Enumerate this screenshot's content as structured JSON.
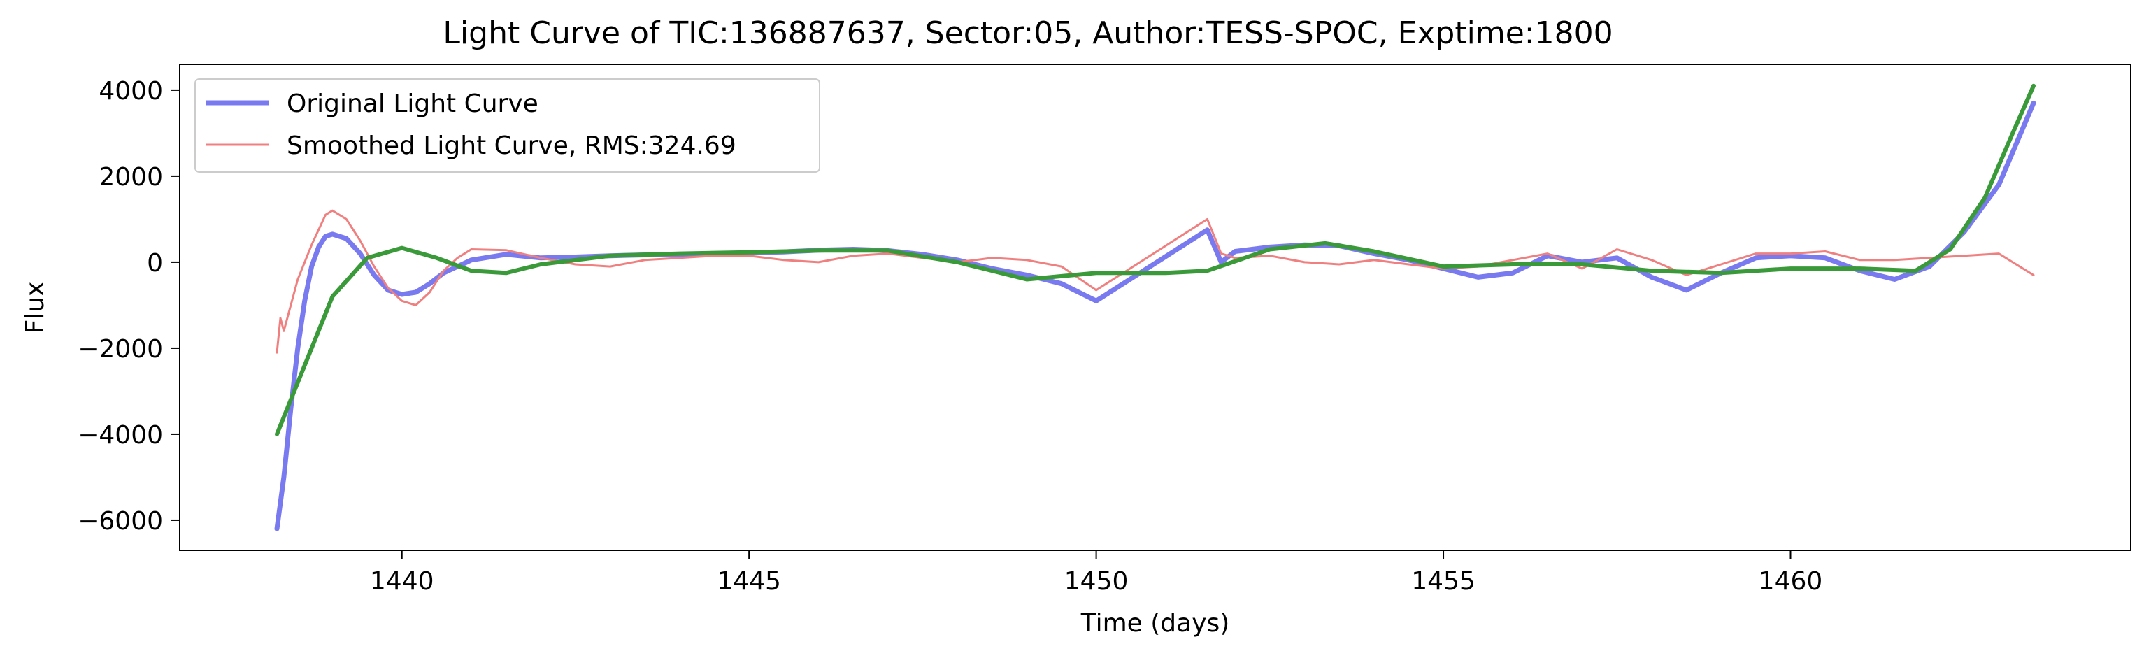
{
  "chart_data": {
    "type": "line",
    "title": "Light Curve of TIC:136887637, Sector:05, Author:TESS-SPOC, Exptime:1800",
    "xlabel": "Time (days)",
    "ylabel": "Flux",
    "xlim": [
      1436.8,
      1464.9
    ],
    "ylim": [
      -6700,
      4600
    ],
    "xticks": [
      1440,
      1445,
      1450,
      1455,
      1460
    ],
    "xtick_labels": [
      "1440",
      "1445",
      "1450",
      "1455",
      "1460"
    ],
    "yticks": [
      -6000,
      -4000,
      -2000,
      0,
      2000,
      4000
    ],
    "ytick_labels": [
      "−6000",
      "−4000",
      "−2000",
      "0",
      "2000",
      "4000"
    ],
    "grid": false,
    "legend_position": "top-left",
    "series": [
      {
        "name": "Original Light Curve",
        "color": "#7a7af0",
        "x": [
          1438.2,
          1438.3,
          1438.4,
          1438.5,
          1438.6,
          1438.7,
          1438.8,
          1438.9,
          1439.0,
          1439.2,
          1439.4,
          1439.6,
          1439.8,
          1440.0,
          1440.2,
          1440.4,
          1440.6,
          1440.8,
          1441.0,
          1441.5,
          1442.0,
          1442.5,
          1443.0,
          1443.5,
          1444.0,
          1444.5,
          1445.0,
          1445.5,
          1446.0,
          1446.5,
          1447.0,
          1447.5,
          1448.0,
          1448.5,
          1449.0,
          1449.5,
          1450.0,
          1451.6,
          1451.8,
          1452.0,
          1452.5,
          1453.0,
          1453.5,
          1454.0,
          1454.5,
          1455.0,
          1455.5,
          1456.0,
          1456.5,
          1457.0,
          1457.5,
          1458.0,
          1458.5,
          1459.0,
          1459.5,
          1460.0,
          1460.5,
          1461.0,
          1461.5,
          1462.0,
          1462.5,
          1463.0,
          1463.5
        ],
        "y": [
          -6200,
          -5000,
          -3400,
          -2000,
          -900,
          -100,
          350,
          600,
          650,
          550,
          200,
          -300,
          -650,
          -750,
          -700,
          -500,
          -250,
          -100,
          50,
          180,
          100,
          120,
          150,
          170,
          180,
          200,
          220,
          240,
          280,
          300,
          270,
          180,
          50,
          -150,
          -300,
          -500,
          -900,
          750,
          0,
          250,
          350,
          400,
          380,
          200,
          50,
          -150,
          -350,
          -250,
          150,
          0,
          100,
          -350,
          -650,
          -250,
          100,
          150,
          100,
          -200,
          -400,
          -100,
          700,
          1800,
          3700
        ]
      },
      {
        "name": "Smoothed Light Curve, RMS:324.69",
        "color": "#f08080",
        "x": [
          1438.2,
          1438.25,
          1438.3,
          1438.5,
          1438.7,
          1438.9,
          1439.0,
          1439.2,
          1439.4,
          1439.6,
          1439.8,
          1440.0,
          1440.2,
          1440.4,
          1440.6,
          1440.8,
          1441.0,
          1441.5,
          1442.0,
          1442.5,
          1443.0,
          1443.5,
          1444.0,
          1444.5,
          1445.0,
          1445.5,
          1446.0,
          1446.5,
          1447.0,
          1447.5,
          1448.0,
          1448.5,
          1449.0,
          1449.5,
          1450.0,
          1451.6,
          1451.8,
          1452.0,
          1452.5,
          1453.0,
          1453.5,
          1454.0,
          1454.5,
          1455.0,
          1455.5,
          1456.0,
          1456.5,
          1457.0,
          1457.5,
          1458.0,
          1458.5,
          1459.0,
          1459.5,
          1460.0,
          1460.5,
          1461.0,
          1461.5,
          1462.0,
          1462.5,
          1463.0,
          1463.5
        ],
        "y": [
          -2100,
          -1300,
          -1600,
          -400,
          400,
          1100,
          1200,
          1000,
          500,
          -100,
          -600,
          -900,
          -1000,
          -700,
          -200,
          100,
          300,
          280,
          100,
          -50,
          -100,
          50,
          100,
          150,
          150,
          50,
          0,
          150,
          200,
          100,
          0,
          100,
          50,
          -100,
          -650,
          1000,
          200,
          100,
          150,
          0,
          -50,
          50,
          -50,
          -150,
          -100,
          50,
          200,
          -150,
          300,
          50,
          -300,
          -50,
          200,
          200,
          250,
          50,
          50,
          100,
          150,
          200,
          -300
        ]
      },
      {
        "name": "",
        "color": "#3a9a3a",
        "x": [
          1438.2,
          1438.6,
          1439.0,
          1439.5,
          1440.0,
          1440.5,
          1441.0,
          1441.5,
          1442.0,
          1443.0,
          1444.0,
          1445.0,
          1446.0,
          1447.0,
          1448.0,
          1449.0,
          1450.0,
          1451.0,
          1451.6,
          1452.5,
          1453.3,
          1454.0,
          1455.0,
          1456.0,
          1457.0,
          1458.0,
          1459.0,
          1460.0,
          1461.0,
          1461.8,
          1462.3,
          1462.8,
          1463.2,
          1463.5
        ],
        "y": [
          -4000,
          -2400,
          -800,
          100,
          330,
          100,
          -200,
          -250,
          -50,
          150,
          200,
          230,
          270,
          270,
          0,
          -400,
          -250,
          -250,
          -200,
          300,
          440,
          250,
          -100,
          -50,
          -50,
          -200,
          -250,
          -150,
          -150,
          -200,
          300,
          1500,
          3000,
          4100
        ]
      }
    ]
  }
}
